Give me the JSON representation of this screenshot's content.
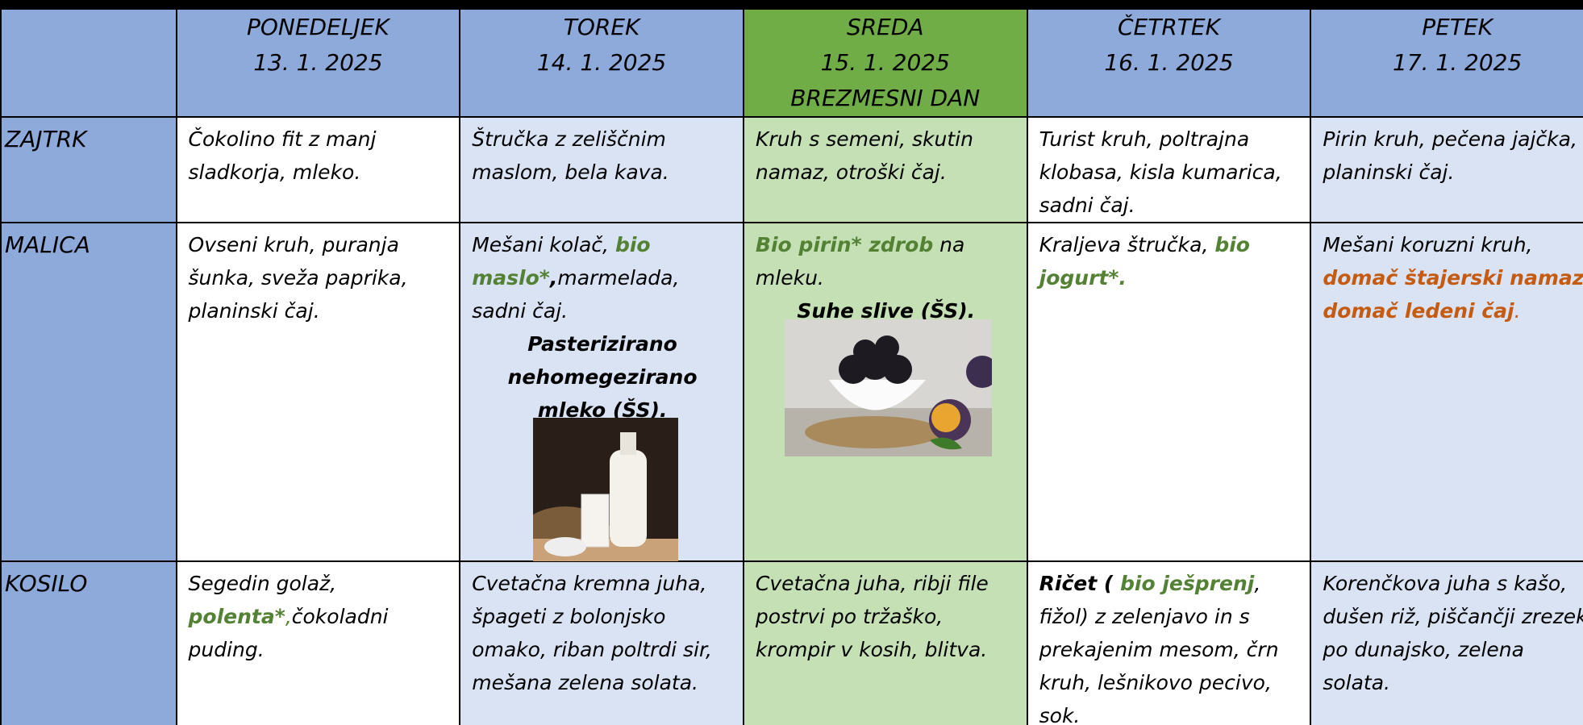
{
  "header": {
    "days": [
      {
        "name": "PONEDELJEK",
        "date": "13. 1. 2025"
      },
      {
        "name": "TOREK",
        "date": "14. 1. 2025"
      },
      {
        "name": "SREDA",
        "date": "15. 1. 2025",
        "note": "BREZMESNI DAN"
      },
      {
        "name": "ČETRTEK",
        "date": "16. 1. 2025"
      },
      {
        "name": "PETEK",
        "date": "17. 1. 2025"
      }
    ]
  },
  "table": {
    "rows": [
      {
        "meal": "ZAJTRK",
        "cells": [
          [
            {
              "segments": [
                {
                  "text": "Čokolino fit  z manj sladkorja, mleko."
                }
              ]
            }
          ],
          [
            {
              "segments": [
                {
                  "text": "Štručka z zeliščnim maslom, bela kava."
                }
              ]
            }
          ],
          [
            {
              "segments": [
                {
                  "text": "Kruh s semeni, skutin namaz, otroški čaj."
                }
              ]
            }
          ],
          [
            {
              "segments": [
                {
                  "text": "Turist kruh, poltrajna klobasa, kisla kumarica, sadni čaj."
                }
              ]
            }
          ],
          [
            {
              "segments": [
                {
                  "text": "Pirin kruh, pečena jajčka, planinski čaj."
                }
              ]
            }
          ]
        ]
      },
      {
        "meal": "MALICA",
        "cells": [
          [
            {
              "segments": [
                {
                  "text": "Ovseni kruh, puranja šunka, sveža paprika, planinski čaj."
                }
              ]
            }
          ],
          [
            {
              "segments": [
                {
                  "text": "Mešani kolač, "
                },
                {
                  "text": "bio maslo*",
                  "color": "#548235",
                  "bold": true
                },
                {
                  "text": ",",
                  "bold": true
                },
                {
                  "text": "marmelada, sadni čaj."
                }
              ]
            },
            {
              "align": "center",
              "segments": [
                {
                  "text": "Pasterizirano nehomegezirano mleko (ŠS).",
                  "bold": true
                }
              ]
            }
          ],
          [
            {
              "segments": [
                {
                  "text": "Bio pirin* zdrob",
                  "color": "#548235",
                  "bold": true
                },
                {
                  "text": "  na mleku."
                }
              ]
            },
            {
              "align": "center",
              "segments": [
                {
                  "text": "Suhe slive (ŠS).",
                  "bold": true
                }
              ]
            }
          ],
          [
            {
              "segments": [
                {
                  "text": "Kraljeva štručka, "
                },
                {
                  "text": "bio jogurt*.",
                  "color": "#548235",
                  "bold": true
                }
              ]
            }
          ],
          [
            {
              "segments": [
                {
                  "text": "Mešani koruzni kruh, "
                },
                {
                  "text": "domač štajerski namaz, domač ledeni čaj",
                  "color": "#c55a11",
                  "bold": true
                },
                {
                  "text": ".",
                  "color": "#c55a11"
                }
              ]
            }
          ]
        ]
      },
      {
        "meal": "KOSILO",
        "cells": [
          [
            {
              "segments": [
                {
                  "text": "Segedin golaž, "
                },
                {
                  "text": "polenta*",
                  "color": "#548235",
                  "bold": true
                },
                {
                  "text": ",",
                  "color": "#548235"
                },
                {
                  "text": "čokoladni puding."
                }
              ]
            }
          ],
          [
            {
              "segments": [
                {
                  "text": "Cvetačna kremna juha, špageti z bolonjsko omako, riban poltrdi sir, mešana zelena solata."
                }
              ]
            }
          ],
          [
            {
              "segments": [
                {
                  "text": "Cvetačna juha, ribji file postrvi po tržaško, krompir v kosih, blitva."
                }
              ]
            }
          ],
          [
            {
              "segments": [
                {
                  "text": "Ričet ( ",
                  "bold": true
                },
                {
                  "text": "bio ješprenj",
                  "color": "#548235",
                  "bold": true
                },
                {
                  "text": ", fižol) z zelenjavo in s prekajenim mesom, črn kruh, lešnikovo pecivo, sok."
                }
              ]
            }
          ],
          [
            {
              "segments": [
                {
                  "text": "Korenčkova juha s kašo, dušen riž, piščančji zrezek po dunajsko, zelena solata."
                }
              ]
            }
          ]
        ]
      }
    ]
  }
}
